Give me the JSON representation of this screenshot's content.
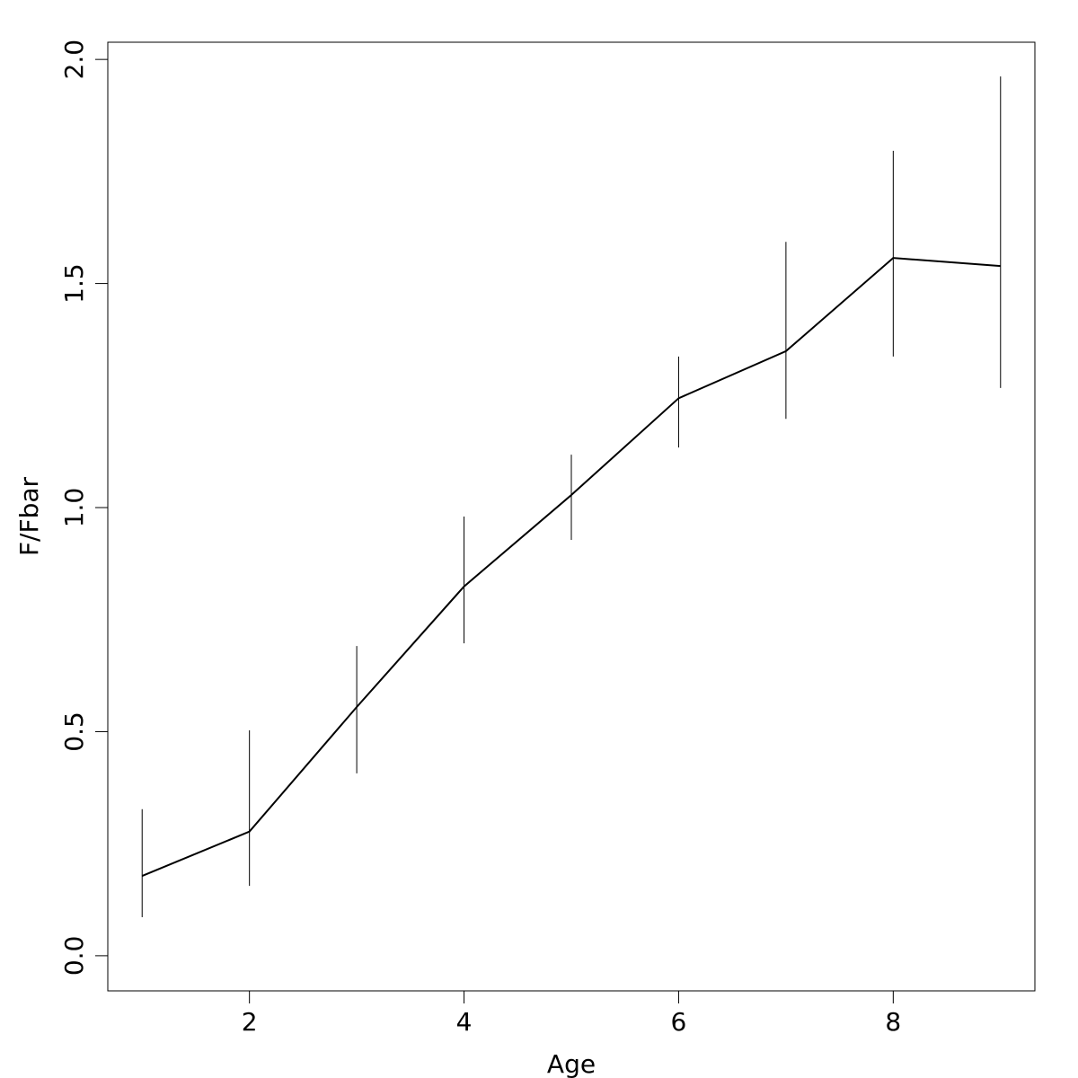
{
  "chart_data": {
    "type": "line",
    "x_label": "Age",
    "y_label": "F/Fbar",
    "x": [
      1,
      2,
      3,
      4,
      5,
      6,
      7,
      8,
      9
    ],
    "series": [
      {
        "color": "#000000",
        "values": [
          0.178,
          0.277,
          0.555,
          0.824,
          1.028,
          1.244,
          1.349,
          1.557,
          1.539
        ],
        "low": [
          0.086,
          0.156,
          0.407,
          0.697,
          0.928,
          1.134,
          1.198,
          1.337,
          1.267
        ],
        "high": [
          0.327,
          0.503,
          0.691,
          0.98,
          1.118,
          1.337,
          1.593,
          1.796,
          1.962
        ]
      }
    ],
    "xlim": [
      0.68,
      9.32
    ],
    "xticks": [
      2,
      4,
      6,
      8
    ],
    "ylim": [
      -0.0784,
      2.0384
    ],
    "yticks": [
      {
        "value": 0,
        "label": "0.0"
      },
      0.5,
      {
        "value": 1,
        "label": "1.0"
      },
      1.5,
      {
        "value": 2,
        "label": "2.0"
      }
    ]
  }
}
